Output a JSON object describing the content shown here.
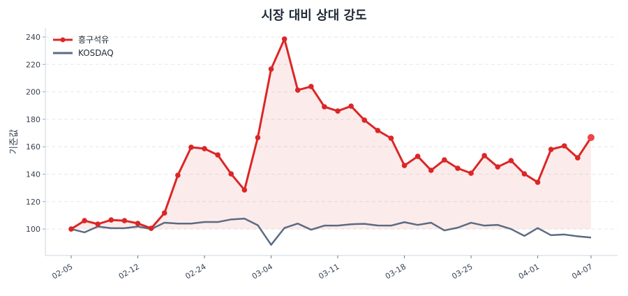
{
  "chart_data": {
    "type": "line",
    "title": "시장 대비 상대 강도",
    "xlabel": "",
    "ylabel": "기준값",
    "ylim": [
      80.7,
      246.6
    ],
    "y_ticks": [
      100,
      120,
      140,
      160,
      180,
      200,
      220,
      240
    ],
    "x_ticks": [
      {
        "index": 0,
        "label": "02-05"
      },
      {
        "index": 5,
        "label": "02-12"
      },
      {
        "index": 10,
        "label": "02-24"
      },
      {
        "index": 15,
        "label": "03-04"
      },
      {
        "index": 20,
        "label": "03-11"
      },
      {
        "index": 25,
        "label": "03-18"
      },
      {
        "index": 30,
        "label": "03-25"
      },
      {
        "index": 35,
        "label": "04-01"
      },
      {
        "index": 39,
        "label": "04-07"
      }
    ],
    "grid": "horizontal dashed",
    "legend_position": "top-left",
    "baseline": 100,
    "series": [
      {
        "name": "흥구석유",
        "color": "#dc2626",
        "markers": true,
        "fill_to_baseline": true,
        "values": [
          100,
          106.1,
          103.6,
          106.6,
          106.1,
          104.1,
          100.5,
          111.7,
          139.2,
          159.6,
          158.6,
          154,
          140.2,
          128.5,
          166.7,
          216.6,
          238.5,
          201.3,
          203.9,
          189.1,
          186,
          189.6,
          179.4,
          171.8,
          166.2,
          146.3,
          153,
          142.8,
          150.4,
          144.3,
          140.7,
          153.5,
          145.3,
          149.9,
          140.2,
          134.1,
          158,
          160.6,
          151.9,
          166.7
        ]
      },
      {
        "name": "KOSDAQ",
        "color": "#5b6b82",
        "markers": false,
        "values": [
          100,
          97.6,
          101.8,
          100.6,
          100.6,
          101.8,
          100,
          104.6,
          104,
          104,
          105.1,
          105.1,
          107,
          107.6,
          102.8,
          88.5,
          100.8,
          104,
          99.5,
          102.5,
          102.5,
          103.5,
          103.8,
          102.6,
          102.5,
          105,
          103,
          104.6,
          99,
          101,
          104.6,
          102.5,
          103,
          100,
          95,
          100.7,
          95.5,
          96,
          94.7,
          93.8
        ]
      }
    ]
  }
}
